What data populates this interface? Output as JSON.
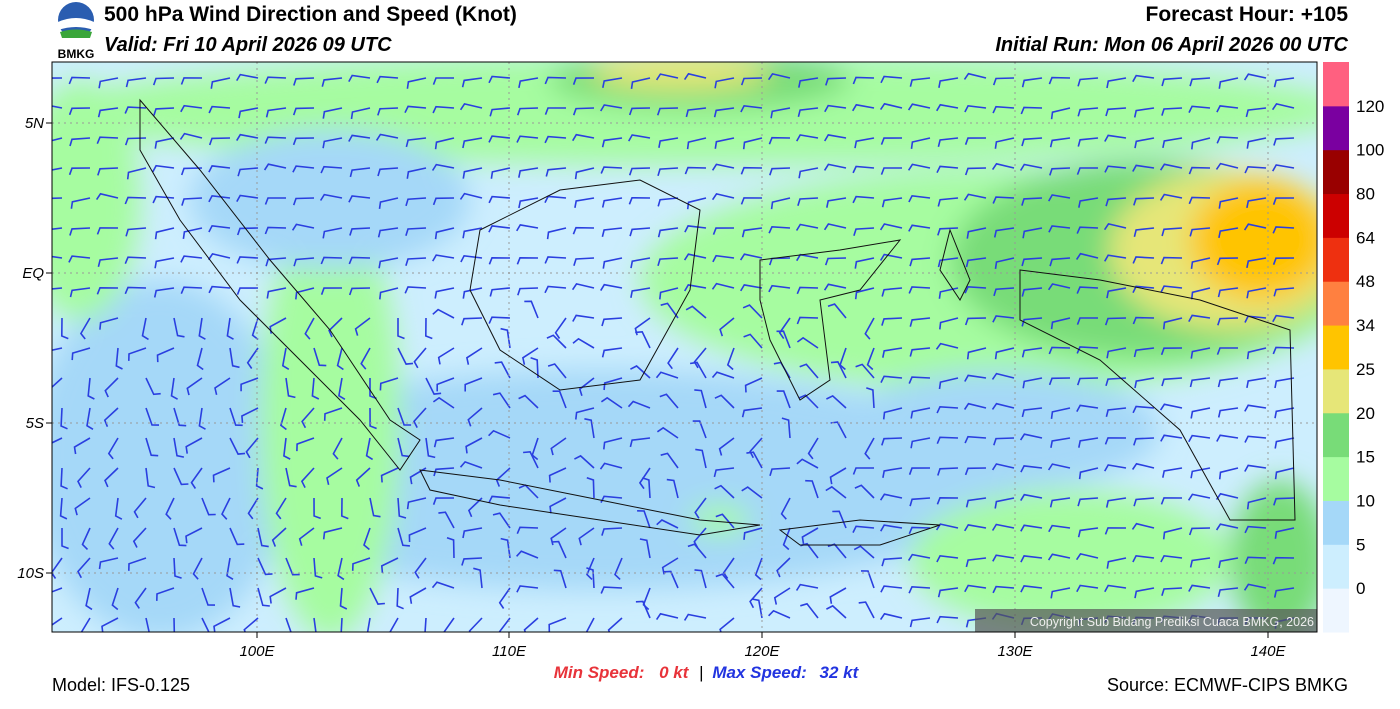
{
  "header": {
    "logo": "BMKG",
    "title": "500 hPa Wind Direction and Speed (Knot)",
    "valid": "Valid: Fri 10 April 2026 09 UTC",
    "forecast_hour": "Forecast Hour: +105",
    "initial_run": "Initial Run: Mon 06 April 2026 00 UTC"
  },
  "map": {
    "lat_labels": [
      "5N",
      "EQ",
      "5S",
      "10S"
    ],
    "lon_labels": [
      "100E",
      "110E",
      "120E",
      "130E",
      "140E"
    ],
    "copyright": "Copyright Sub Bidang Prediksi Cuaca BMKG, 2026"
  },
  "legend": {
    "labels": [
      "0",
      "5",
      "10",
      "15",
      "20",
      "25",
      "34",
      "48",
      "64",
      "80",
      "100",
      "120"
    ]
  },
  "footer": {
    "model": "Model: IFS-0.125",
    "min_label": "Min Speed:",
    "min_value": "0 kt",
    "separator": "|",
    "max_label": "Max Speed:",
    "max_value": "32 kt",
    "source": "Source: ECMWF-CIPS BMKG"
  }
}
